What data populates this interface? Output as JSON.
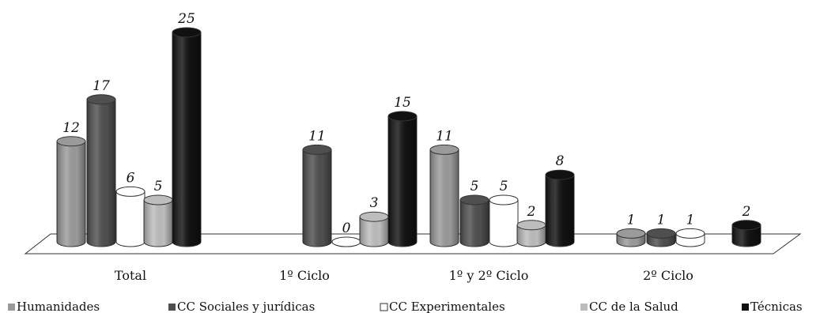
{
  "chart_data": {
    "type": "bar",
    "style": "3d-cylinder",
    "categories": [
      "Total",
      "1º Ciclo",
      "1º y 2º Ciclo",
      "2º Ciclo"
    ],
    "series": [
      {
        "name": "Humanidades",
        "color": "#9a9a9a",
        "values": [
          12,
          null,
          11,
          1
        ]
      },
      {
        "name": "CC Sociales y jurídicas",
        "color": "#4f4f4f",
        "values": [
          17,
          11,
          5,
          1
        ]
      },
      {
        "name": "CC Experimentales",
        "color": "#ffffff",
        "values": [
          6,
          0,
          5,
          1
        ]
      },
      {
        "name": "CC de la Salud",
        "color": "#bdbdbd",
        "values": [
          5,
          3,
          2,
          null
        ]
      },
      {
        "name": "Técnicas",
        "color": "#111111",
        "values": [
          25,
          15,
          8,
          2
        ]
      }
    ],
    "ylim": [
      0,
      25
    ],
    "legend": "bottom",
    "grid": false
  }
}
